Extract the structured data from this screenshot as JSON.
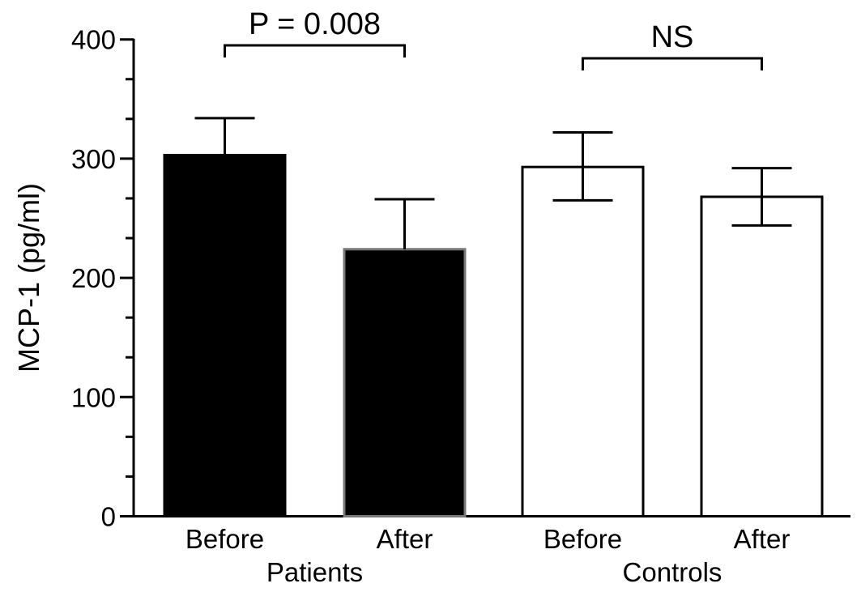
{
  "chart_data": {
    "type": "bar",
    "ylabel": "MCP-1 (pg/ml)",
    "xlabel": "",
    "ylim": [
      0,
      400
    ],
    "yticks": [
      0,
      100,
      200,
      300,
      400
    ],
    "minor_ticks_per_major": 3,
    "grid": false,
    "categories": [
      "Before",
      "After",
      "Before",
      "After"
    ],
    "groups": [
      "Patients",
      "Controls"
    ],
    "values": [
      303,
      224,
      293,
      268
    ],
    "error_upper": [
      334,
      266,
      322,
      292
    ],
    "error_lower": [
      null,
      null,
      265,
      244
    ],
    "bar_fills": [
      "#000000",
      "#000000",
      "#ffffff",
      "#ffffff"
    ],
    "annotations": [
      {
        "text": "P = 0.008",
        "from": 0,
        "to": 1
      },
      {
        "text": "NS",
        "from": 2,
        "to": 3
      }
    ]
  }
}
